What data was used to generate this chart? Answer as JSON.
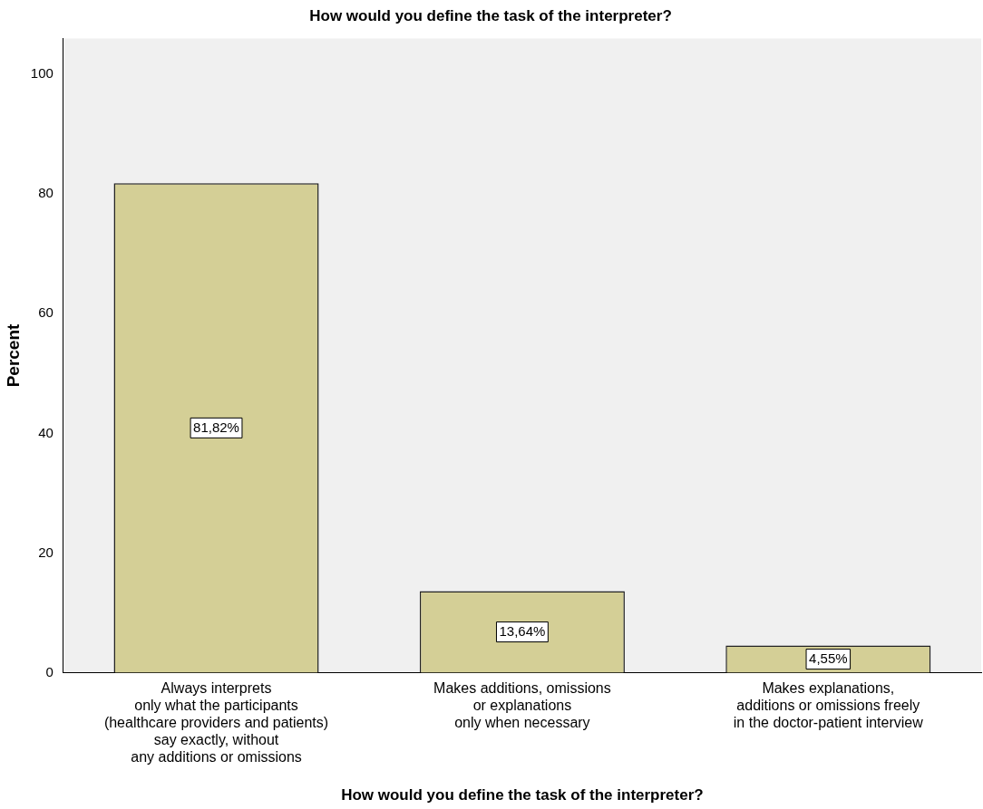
{
  "chart_data": {
    "type": "bar",
    "title": "How would you define the task of the interpreter?",
    "xlabel": "How would you define the task of the interpreter?",
    "ylabel": "Percent",
    "categories": [
      "Always interprets\nonly what the participants\n(healthcare providers and patients)\nsay exactly, without\nany additions or omissions",
      "Makes additions, omissions\nor explanations\nonly when necessary",
      "Makes explanations,\nadditions or omissions freely\nin the doctor-patient interview"
    ],
    "values": [
      81.82,
      13.64,
      4.55
    ],
    "color": "#d4cf96",
    "value_labels": [
      "81,82%",
      "13,64%",
      "4,55%"
    ],
    "ylim": [
      0,
      106
    ],
    "yticks": [
      0,
      20,
      40,
      60,
      80,
      100
    ],
    "grid": false,
    "legend": false
  }
}
